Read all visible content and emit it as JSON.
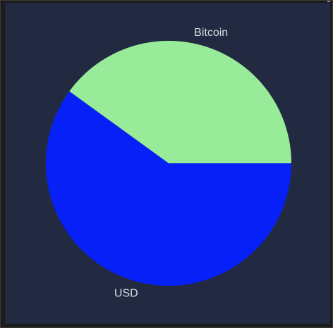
{
  "chart_data": {
    "type": "pie",
    "title": "",
    "start_angle_deg": 0,
    "direction": "counterclockwise",
    "slices": [
      {
        "label": "Bitcoin",
        "value": 40,
        "color": "#98eb98"
      },
      {
        "label": "USD",
        "value": 60,
        "color": "#0620f7"
      }
    ],
    "background_color": "#222a41",
    "label_color": "#d9dce4"
  }
}
